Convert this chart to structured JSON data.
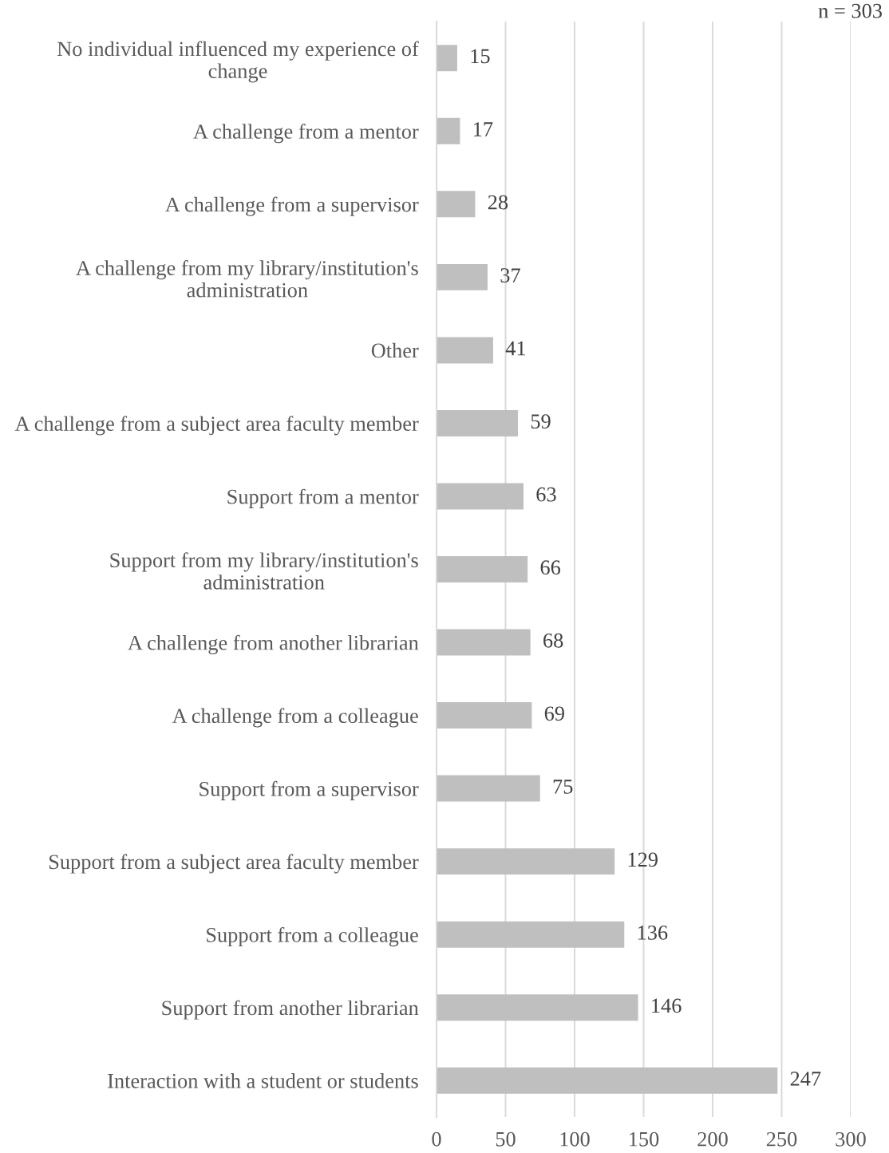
{
  "chart_data": {
    "type": "bar",
    "orientation": "horizontal",
    "categories": [
      "No individual influenced my experience of change",
      "A challenge from a mentor",
      "A challenge from a supervisor",
      "A challenge from my library/institution's administration",
      "Other",
      "A challenge from a subject area faculty member",
      "Support from a mentor",
      "Support from my library/institution's administration",
      "A challenge from another librarian",
      "A challenge from a colleague",
      "Support from a supervisor",
      "Support from a subject area faculty member",
      "Support from a colleague",
      "Support from another librarian",
      "Interaction with a student or students"
    ],
    "values": [
      15,
      17,
      28,
      37,
      41,
      59,
      63,
      66,
      68,
      69,
      75,
      129,
      136,
      146,
      247
    ],
    "color": "#bfbfbf",
    "xlim": [
      0,
      300
    ],
    "xticks": [
      0,
      50,
      100,
      150,
      200,
      250,
      300
    ],
    "grid": "x",
    "data_labels": true,
    "annotations": [
      "n = 303"
    ]
  }
}
